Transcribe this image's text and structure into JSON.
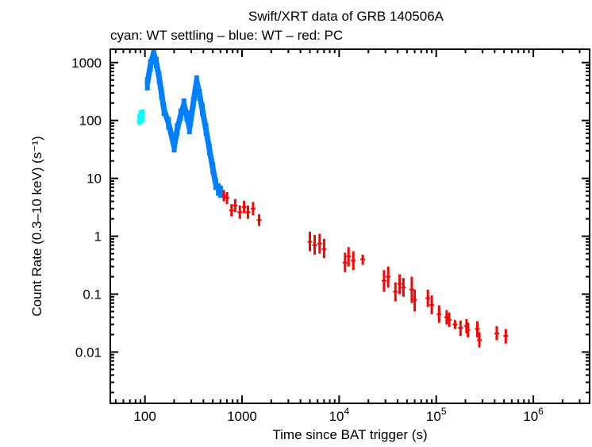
{
  "chart_data": {
    "type": "scatter",
    "title": "Swift/XRT data of GRB 140506A",
    "subtitle": "cyan: WT settling – blue: WT – red: PC",
    "xlabel": "Time since BAT trigger (s)",
    "ylabel": "Count Rate (0.3–10 keV) (s⁻¹)",
    "xscale": "log",
    "yscale": "log",
    "xlim": [
      44,
      3800000
    ],
    "ylim": [
      0.0013,
      1700
    ],
    "grid": false,
    "xticks": [
      {
        "value": 100,
        "label": "100"
      },
      {
        "value": 1000,
        "label": "1000"
      },
      {
        "value": 10000,
        "label": "10",
        "exp": "4"
      },
      {
        "value": 100000,
        "label": "10",
        "exp": "5"
      },
      {
        "value": 1000000,
        "label": "10",
        "exp": "6"
      }
    ],
    "yticks": [
      {
        "value": 1000,
        "label": "1000"
      },
      {
        "value": 100,
        "label": "100"
      },
      {
        "value": 10,
        "label": "10"
      },
      {
        "value": 1,
        "label": "1"
      },
      {
        "value": 0.1,
        "label": "0.1"
      },
      {
        "value": 0.01,
        "label": "0.01"
      }
    ],
    "series": [
      {
        "mode": "WT settling",
        "color": "#00ffff",
        "points": [
          [
            88,
            105,
            85,
            130
          ],
          [
            91,
            115,
            90,
            150
          ],
          [
            94,
            120,
            95,
            155
          ]
        ]
      },
      {
        "mode": "WT",
        "color": "#0080ff",
        "points": [
          [
            106,
            440,
            330,
            560
          ],
          [
            114,
            900,
            700,
            1150
          ],
          [
            123,
            1460,
            1150,
            1700
          ],
          [
            131,
            1000,
            800,
            1250
          ],
          [
            140,
            550,
            430,
            700
          ],
          [
            148,
            300,
            230,
            380
          ],
          [
            157,
            155,
            120,
            200
          ],
          [
            175,
            90,
            70,
            115
          ],
          [
            200,
            35,
            28,
            45
          ],
          [
            215,
            70,
            55,
            90
          ],
          [
            234,
            125,
            100,
            160
          ],
          [
            252,
            190,
            150,
            240
          ],
          [
            270,
            120,
            95,
            150
          ],
          [
            288,
            73,
            58,
            92
          ],
          [
            315,
            200,
            160,
            250
          ],
          [
            341,
            480,
            380,
            600
          ],
          [
            365,
            280,
            220,
            350
          ],
          [
            390,
            155,
            120,
            195
          ],
          [
            425,
            70,
            55,
            90
          ],
          [
            461,
            32,
            25,
            40
          ],
          [
            500,
            15,
            12,
            19
          ],
          [
            536,
            8,
            6.3,
            10
          ],
          [
            570,
            6.5,
            5,
            8.2
          ],
          [
            600,
            6,
            4.6,
            7.5
          ]
        ]
      },
      {
        "mode": "PC",
        "color": "#ff0000",
        "points": [
          [
            650,
            5,
            4,
            6.3
          ],
          [
            700,
            4.6,
            3.6,
            5.8
          ],
          [
            780,
            2.8,
            2.2,
            3.6
          ],
          [
            850,
            3.4,
            2.6,
            4.4
          ],
          [
            950,
            2.6,
            2,
            3.4
          ],
          [
            1050,
            3.2,
            2.5,
            4.1
          ],
          [
            1150,
            2.6,
            2,
            3.4
          ],
          [
            1300,
            3,
            2.3,
            3.9
          ],
          [
            1500,
            1.9,
            1.5,
            2.4
          ],
          [
            5000,
            0.8,
            0.55,
            1.2
          ],
          [
            5600,
            0.7,
            0.48,
            1.05
          ],
          [
            6300,
            0.75,
            0.5,
            1.1
          ],
          [
            7000,
            0.6,
            0.42,
            0.9
          ],
          [
            11500,
            0.35,
            0.24,
            0.52
          ],
          [
            12500,
            0.45,
            0.3,
            0.65
          ],
          [
            14000,
            0.38,
            0.26,
            0.55
          ],
          [
            17500,
            0.4,
            0.32,
            0.48
          ],
          [
            29000,
            0.17,
            0.11,
            0.26
          ],
          [
            32000,
            0.2,
            0.13,
            0.3
          ],
          [
            38000,
            0.11,
            0.075,
            0.16
          ],
          [
            42000,
            0.15,
            0.1,
            0.22
          ],
          [
            46000,
            0.13,
            0.09,
            0.19
          ],
          [
            56000,
            0.12,
            0.07,
            0.2
          ],
          [
            60000,
            0.08,
            0.05,
            0.12
          ],
          [
            82000,
            0.085,
            0.06,
            0.12
          ],
          [
            90000,
            0.065,
            0.045,
            0.095
          ],
          [
            107000,
            0.045,
            0.032,
            0.064
          ],
          [
            128000,
            0.04,
            0.03,
            0.053
          ],
          [
            136000,
            0.036,
            0.027,
            0.048
          ],
          [
            156000,
            0.03,
            0.025,
            0.036
          ],
          [
            178000,
            0.026,
            0.019,
            0.035
          ],
          [
            205000,
            0.028,
            0.021,
            0.037
          ],
          [
            212000,
            0.024,
            0.018,
            0.032
          ],
          [
            265000,
            0.025,
            0.018,
            0.034
          ],
          [
            278000,
            0.016,
            0.012,
            0.022
          ],
          [
            420000,
            0.021,
            0.016,
            0.028
          ],
          [
            520000,
            0.019,
            0.014,
            0.025
          ]
        ]
      }
    ]
  }
}
